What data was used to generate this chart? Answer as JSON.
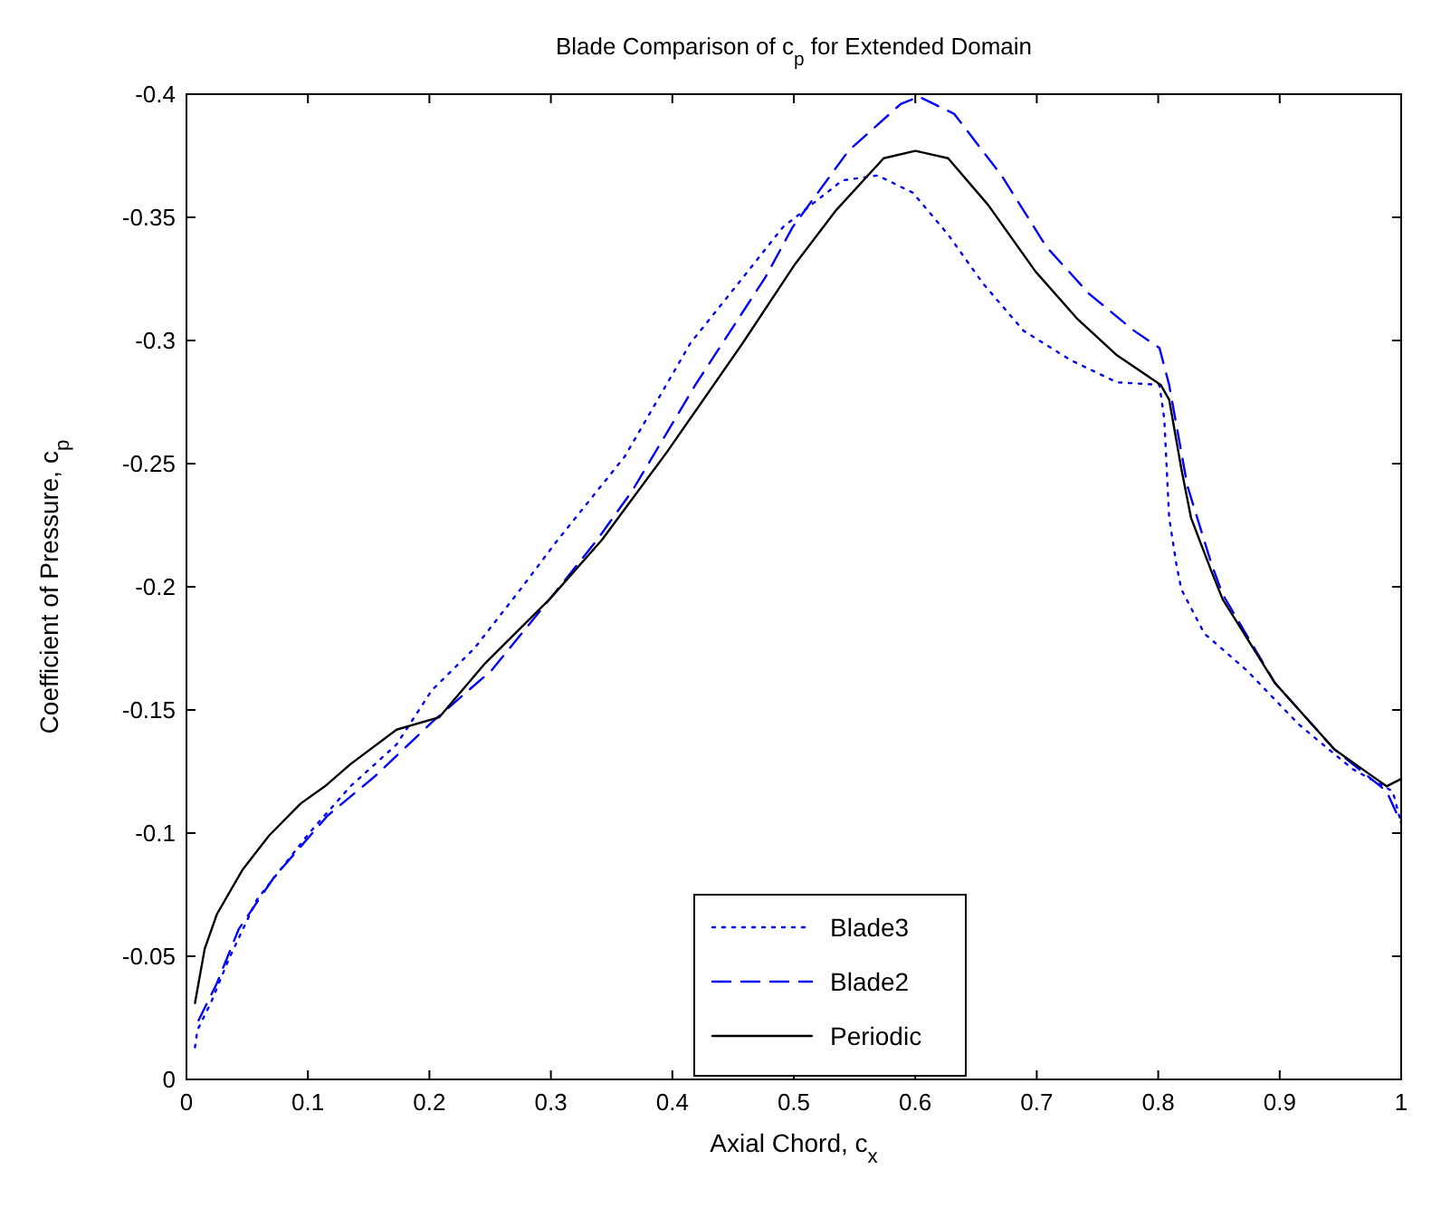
{
  "chart_data": {
    "type": "line",
    "title": "Blade Comparison of c$_{p}$ for Extended Domain",
    "xlabel": "Axial Chord, c$_{x}$",
    "ylabel": "Coefficient of Pressure, c$_{p}$",
    "xlim": [
      0,
      1
    ],
    "xticks": [
      0,
      0.1,
      0.2,
      0.3,
      0.4,
      0.5,
      0.6,
      0.7,
      0.8,
      0.9,
      1
    ],
    "ylim": [
      0,
      -0.4
    ],
    "yticks": [
      0,
      -0.05,
      -0.1,
      -0.15,
      -0.2,
      -0.25,
      -0.3,
      -0.35,
      -0.4
    ],
    "grid": false,
    "legend": "bottom",
    "series": [
      {
        "name": "Blade3",
        "color": "#0000ff",
        "line_style": "dotted",
        "x": [
          0.007,
          0.009,
          0.02,
          0.035,
          0.058,
          0.101,
          0.135,
          0.173,
          0.202,
          0.237,
          0.275,
          0.304,
          0.361,
          0.415,
          0.454,
          0.491,
          0.54,
          0.569,
          0.598,
          0.627,
          0.656,
          0.689,
          0.728,
          0.766,
          0.801,
          0.805,
          0.809,
          0.815,
          0.819,
          0.838,
          0.873,
          0.916,
          0.96,
          0.993,
          1.0
        ],
        "values": [
          -0.013,
          -0.02,
          -0.031,
          -0.049,
          -0.073,
          -0.1,
          -0.119,
          -0.136,
          -0.158,
          -0.175,
          -0.199,
          -0.218,
          -0.253,
          -0.299,
          -0.323,
          -0.346,
          -0.365,
          -0.367,
          -0.36,
          -0.343,
          -0.323,
          -0.304,
          -0.292,
          -0.283,
          -0.282,
          -0.268,
          -0.228,
          -0.209,
          -0.199,
          -0.181,
          -0.166,
          -0.144,
          -0.126,
          -0.117,
          -0.104
        ]
      },
      {
        "name": "Blade2",
        "color": "#0000ff",
        "line_style": "dashed",
        "x": [
          0.01,
          0.025,
          0.043,
          0.072,
          0.116,
          0.155,
          0.202,
          0.251,
          0.304,
          0.338,
          0.367,
          0.419,
          0.477,
          0.499,
          0.545,
          0.588,
          0.603,
          0.632,
          0.671,
          0.708,
          0.743,
          0.78,
          0.801,
          0.809,
          0.824,
          0.844,
          0.853,
          0.896,
          0.945,
          0.988,
          1.0
        ],
        "values": [
          -0.024,
          -0.039,
          -0.061,
          -0.082,
          -0.107,
          -0.123,
          -0.145,
          -0.166,
          -0.198,
          -0.219,
          -0.239,
          -0.282,
          -0.326,
          -0.346,
          -0.377,
          -0.396,
          -0.399,
          -0.392,
          -0.367,
          -0.338,
          -0.319,
          -0.304,
          -0.297,
          -0.282,
          -0.241,
          -0.209,
          -0.197,
          -0.161,
          -0.134,
          -0.117,
          -0.104
        ]
      },
      {
        "name": "Periodic",
        "color": "#000000",
        "line_style": "solid",
        "x": [
          0.007,
          0.015,
          0.025,
          0.046,
          0.068,
          0.094,
          0.114,
          0.135,
          0.173,
          0.208,
          0.246,
          0.299,
          0.342,
          0.396,
          0.458,
          0.501,
          0.535,
          0.574,
          0.6,
          0.627,
          0.66,
          0.699,
          0.733,
          0.766,
          0.802,
          0.809,
          0.819,
          0.827,
          0.844,
          0.853,
          0.896,
          0.945,
          0.988,
          1.0
        ],
        "values": [
          -0.031,
          -0.053,
          -0.067,
          -0.085,
          -0.099,
          -0.112,
          -0.119,
          -0.128,
          -0.142,
          -0.147,
          -0.169,
          -0.195,
          -0.219,
          -0.255,
          -0.299,
          -0.331,
          -0.353,
          -0.374,
          -0.377,
          -0.374,
          -0.355,
          -0.328,
          -0.309,
          -0.294,
          -0.282,
          -0.276,
          -0.248,
          -0.228,
          -0.206,
          -0.195,
          -0.161,
          -0.134,
          -0.119,
          -0.122
        ]
      }
    ]
  }
}
